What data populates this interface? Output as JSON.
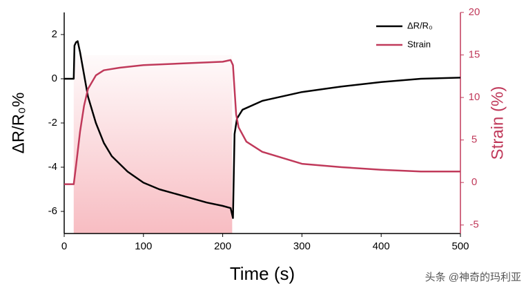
{
  "chart_data": {
    "type": "line",
    "xlabel": "Time (s)",
    "ylabel": "ΔR/R₀%",
    "y2label": "Strain (%)",
    "xlim": [
      0,
      500
    ],
    "xticks": [
      0,
      100,
      200,
      300,
      400,
      500
    ],
    "ylim": [
      -7,
      3
    ],
    "yticks": [
      -6,
      -4,
      -2,
      0,
      2
    ],
    "y2lim": [
      -6,
      20
    ],
    "y2ticks": [
      -5,
      0,
      5,
      10,
      15,
      20
    ],
    "shade_x": [
      12,
      212
    ],
    "shade_color": "#f4a0a8",
    "legend": "top-right",
    "series": [
      {
        "name": "ΔR/R₀",
        "color": "#000000",
        "x": [
          0,
          12,
          13,
          15,
          17,
          20,
          25,
          30,
          40,
          50,
          60,
          80,
          100,
          120,
          150,
          180,
          200,
          210,
          213,
          215,
          218,
          225,
          250,
          300,
          350,
          400,
          450,
          500
        ],
        "values": [
          0,
          0,
          1.5,
          1.65,
          1.7,
          1.2,
          0.2,
          -0.8,
          -2.0,
          -2.9,
          -3.5,
          -4.2,
          -4.7,
          -5.0,
          -5.3,
          -5.6,
          -5.75,
          -5.85,
          -6.3,
          -2.5,
          -1.8,
          -1.4,
          -1.0,
          -0.6,
          -0.35,
          -0.15,
          0.0,
          0.05
        ]
      },
      {
        "name": "Strain",
        "color": "#c0395a",
        "axis": "y2",
        "x": [
          0,
          12,
          13,
          15,
          20,
          25,
          30,
          40,
          50,
          70,
          100,
          150,
          200,
          210,
          213,
          217,
          220,
          230,
          250,
          300,
          350,
          400,
          450,
          500
        ],
        "values": [
          -0.2,
          -0.2,
          0.5,
          2,
          6,
          9,
          11,
          12.6,
          13.2,
          13.5,
          13.8,
          14.0,
          14.2,
          14.4,
          13.8,
          8,
          6.5,
          4.8,
          3.6,
          2.2,
          1.8,
          1.5,
          1.3,
          1.3
        ]
      }
    ],
    "watermark": "头条 @神奇的玛利亚"
  }
}
